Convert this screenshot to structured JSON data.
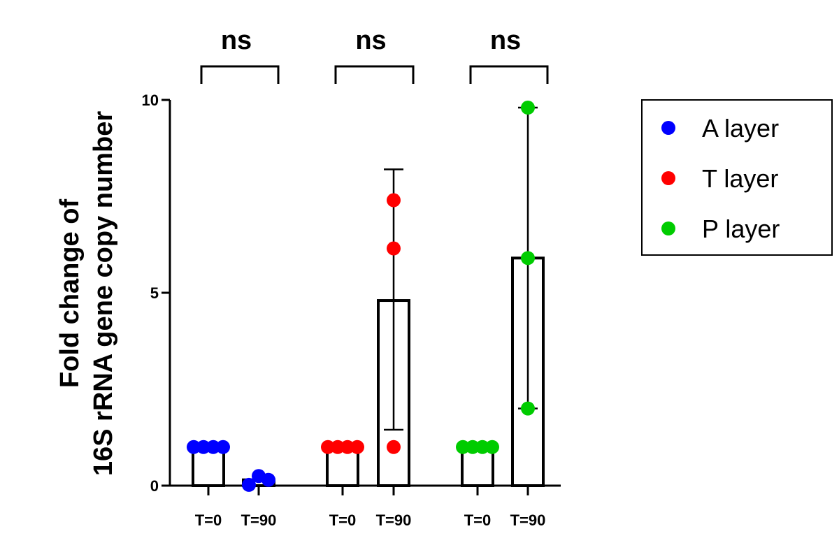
{
  "chart_data": {
    "type": "bar",
    "ylabel_lines": [
      "Fold change of",
      "16S rRNA gene copy number"
    ],
    "ylim": [
      0,
      10
    ],
    "yticks": [
      0,
      5,
      10
    ],
    "groups": [
      {
        "name": "A layer",
        "color": "#0000ff",
        "significance": "ns",
        "bars": [
          {
            "category": "T=0",
            "mean": 1.0,
            "points": [
              1.0,
              1.0,
              1.0,
              1.0
            ]
          },
          {
            "category": "T=90",
            "mean": 0.15,
            "points": [
              0.02,
              0.25,
              0.15
            ]
          }
        ]
      },
      {
        "name": "T layer",
        "color": "#ff0000",
        "significance": "ns",
        "bars": [
          {
            "category": "T=0",
            "mean": 1.0,
            "points": [
              1.0,
              1.0,
              1.0,
              1.0
            ]
          },
          {
            "category": "T=90",
            "mean": 4.8,
            "error": [
              1.45,
              8.2
            ],
            "points": [
              7.4,
              6.15,
              1.0
            ]
          }
        ]
      },
      {
        "name": "P layer",
        "color": "#00cc00",
        "significance": "ns",
        "bars": [
          {
            "category": "T=0",
            "mean": 1.0,
            "points": [
              1.0,
              1.0,
              1.0,
              1.0
            ]
          },
          {
            "category": "T=90",
            "mean": 5.9,
            "error": [
              2.0,
              9.8
            ],
            "points": [
              9.8,
              5.9,
              2.0
            ]
          }
        ]
      }
    ],
    "legend": [
      {
        "label": "A layer",
        "color": "#0000ff"
      },
      {
        "label": "T layer",
        "color": "#ff0000"
      },
      {
        "label": "P layer",
        "color": "#00cc00"
      }
    ],
    "legend_position": "right"
  }
}
